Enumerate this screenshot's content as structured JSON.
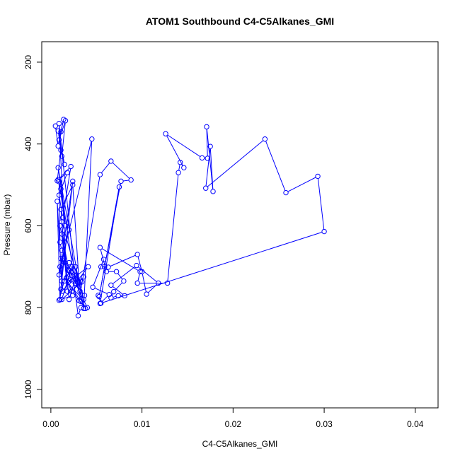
{
  "chart_data": {
    "type": "line",
    "title": "ATOM1 Southbound C4-C5Alkanes_GMI",
    "xlabel": "C4-C5Alkanes_GMI",
    "ylabel": "Pressure (mbar)",
    "xlim": [
      -0.001,
      0.0425
    ],
    "ylim": [
      1045,
      150
    ],
    "y_reversed": true,
    "x_ticks": [
      0.0,
      0.01,
      0.02,
      0.03,
      0.04
    ],
    "x_tick_labels": [
      "0.00",
      "0.01",
      "0.02",
      "0.03",
      "0.04"
    ],
    "y_ticks": [
      200,
      400,
      600,
      800,
      1000
    ],
    "y_tick_labels": [
      "200",
      "400",
      "600",
      "800",
      "1000"
    ],
    "grid": false,
    "legend": "none",
    "series": [
      {
        "color": "#0000ff",
        "marker": "open-circle",
        "x": [
          0.0005,
          0.0008,
          0.0011,
          0.0014,
          0.0009,
          0.0016,
          0.0012,
          0.0008,
          0.0015,
          0.0011,
          0.0007,
          0.0018,
          0.0009,
          0.0013,
          0.0022,
          0.0008,
          0.0011,
          0.0016,
          0.0009,
          0.001,
          0.0012,
          0.002,
          0.0009,
          0.0024,
          0.0011,
          0.0014,
          0.001,
          0.0007,
          0.0012,
          0.001,
          0.0045,
          0.0036,
          0.0008,
          0.0025,
          0.0013,
          0.0011,
          0.003,
          0.002,
          0.0009,
          0.0024,
          0.0017,
          0.0012,
          0.001,
          0.0022,
          0.0015,
          0.0028,
          0.002,
          0.0012,
          0.0031,
          0.0024,
          0.0011,
          0.0018,
          0.0009,
          0.0027,
          0.002,
          0.0034,
          0.0012,
          0.0023,
          0.0015,
          0.0036,
          0.0027,
          0.0033,
          0.0019,
          0.0041,
          0.0029,
          0.0036,
          0.0023,
          0.0038,
          0.0033,
          0.003,
          0.0025,
          0.0037,
          0.0032,
          0.0027,
          0.004,
          0.0031,
          0.0054,
          0.0066,
          0.0088,
          0.0077,
          0.0059,
          0.0053,
          0.0075,
          0.0054,
          0.0064,
          0.0046,
          0.0058,
          0.0055,
          0.0063,
          0.0095,
          0.01,
          0.0105,
          0.0118,
          0.0094,
          0.0066,
          0.0081,
          0.0074,
          0.0066,
          0.0069,
          0.008,
          0.0072,
          0.0061,
          0.0054,
          0.0098,
          0.0095,
          0.0128,
          0.014,
          0.0142,
          0.0146,
          0.0126,
          0.0166,
          0.0172,
          0.0171,
          0.0178,
          0.0175,
          0.017,
          0.0235,
          0.0258,
          0.0293,
          0.03,
          0.0055,
          0.0052
        ],
        "y": [
          356,
          405,
          370,
          340,
          390,
          343,
          430,
          368,
          450,
          415,
          490,
          470,
          525,
          580,
          455,
          487,
          510,
          600,
          492,
          640,
          660,
          610,
          720,
          491,
          755,
          680,
          780,
          540,
          735,
          700,
          388,
          802,
          458,
          720,
          760,
          680,
          740,
          690,
          782,
          770,
          727,
          620,
          600,
          732,
          690,
          720,
          780,
          590,
          740,
          500,
          560,
          760,
          350,
          740,
          710,
          737,
          780,
          700,
          735,
          780,
          700,
          785,
          738,
          700,
          735,
          725,
          760,
          802,
          800,
          820,
          735,
          770,
          760,
          740,
          800,
          783,
          475,
          442,
          488,
          491,
          700,
          773,
          505,
          790,
          768,
          750,
          682,
          700,
          701,
          670,
          712,
          767,
          740,
          697,
          745,
          771,
          771,
          776,
          761,
          735,
          712,
          712,
          653,
          712,
          740,
          740,
          470,
          445,
          458,
          375,
          434,
          435,
          358,
          516,
          406,
          508,
          388,
          519,
          479,
          614,
          789,
          770
        ]
      }
    ]
  }
}
